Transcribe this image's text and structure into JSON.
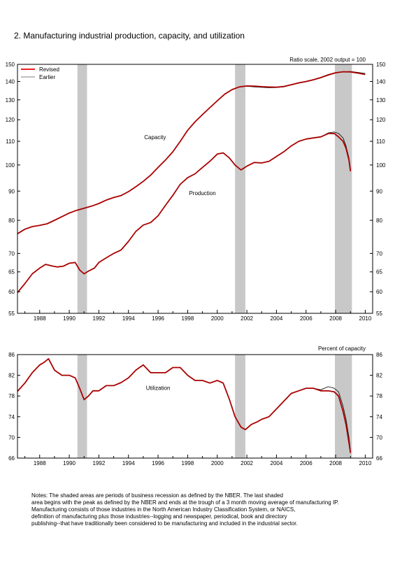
{
  "figure": {
    "title": "2. Manufacturing industrial production, capacity, and utilization",
    "notes": [
      " Notes: The shaded areas are periods of business recession as defined by the NBER.  The last shaded",
      "area begins with the peak as defined by the NBER and ends at the trough of a 3 month moving average of manufacturing IP.",
      "  Manufacturing consists of those industries in the North American Industry Classification System, or NAICS,",
      "definition of manufacturing plus those industries--logging and newspaper, periodical, book and directory",
      "publishing--that have traditionally been considered to be manufacturing and included in the industrial sector."
    ]
  },
  "colors": {
    "revised": "#aa0000",
    "earlier": "#000000",
    "recession": "#c8c8c8",
    "legend_revised": "#ee0000",
    "legend_earlier": "#999999"
  },
  "chart_data": [
    {
      "type": "line",
      "scale": "log",
      "annotation": "Ratio scale, 2002 output = 100",
      "xlim": [
        1986.5,
        2010.5
      ],
      "ylim": [
        55,
        150
      ],
      "x_ticks": [
        1988,
        1990,
        1992,
        1994,
        1996,
        1998,
        2000,
        2002,
        2004,
        2006,
        2008,
        2010
      ],
      "y_ticks": [
        55,
        60,
        65,
        70,
        80,
        90,
        100,
        110,
        120,
        130,
        140,
        150
      ],
      "recessions": [
        [
          1990.55,
          1991.2
        ],
        [
          2001.2,
          2001.9
        ],
        [
          2007.95,
          2009.1
        ]
      ],
      "legend": [
        "Revised",
        "Earlier"
      ],
      "legend_position": "top-left",
      "series": [
        {
          "label": "Capacity",
          "x": [
            1986.5,
            1987.0,
            1987.5,
            1988.0,
            1988.5,
            1989.0,
            1989.5,
            1990.0,
            1990.5,
            1991.0,
            1991.5,
            1992.0,
            1992.5,
            1993.0,
            1993.5,
            1994.0,
            1994.5,
            1995.0,
            1995.5,
            1996.0,
            1996.5,
            1997.0,
            1997.5,
            1998.0,
            1998.5,
            1999.0,
            1999.5,
            2000.0,
            2000.5,
            2001.0,
            2001.5,
            2002.0,
            2002.5,
            2003.0,
            2003.5,
            2004.0,
            2004.5,
            2005.0,
            2005.5,
            2006.0,
            2006.5,
            2007.0,
            2007.5,
            2008.0,
            2008.5,
            2009.0,
            2009.5,
            2010.0
          ],
          "revised": [
            75.8,
            77.2,
            78.0,
            78.4,
            78.9,
            80.0,
            81.2,
            82.4,
            83.3,
            84.0,
            84.7,
            85.6,
            86.8,
            87.7,
            88.4,
            89.8,
            91.6,
            93.6,
            96.0,
            99.0,
            102.0,
            105.5,
            110.0,
            115.0,
            119.0,
            122.5,
            126.0,
            129.5,
            133.0,
            135.5,
            137.0,
            137.5,
            137.4,
            137.1,
            136.9,
            136.8,
            137.2,
            138.2,
            139.2,
            140.0,
            141.0,
            142.2,
            143.8,
            145.0,
            145.6,
            145.5,
            144.8,
            144.0
          ],
          "earlier": [
            75.8,
            77.2,
            78.0,
            78.4,
            78.9,
            80.0,
            81.2,
            82.4,
            83.3,
            84.0,
            84.7,
            85.6,
            86.8,
            87.7,
            88.4,
            89.8,
            91.6,
            93.6,
            96.0,
            99.0,
            102.0,
            105.5,
            110.0,
            115.0,
            119.0,
            122.5,
            126.0,
            129.5,
            133.0,
            135.5,
            137.0,
            137.3,
            137.0,
            136.7,
            136.5,
            136.6,
            137.0,
            138.0,
            139.0,
            139.8,
            140.8,
            142.0,
            143.5,
            144.8,
            145.6,
            145.8,
            145.2,
            144.6
          ]
        },
        {
          "label": "Production",
          "x": [
            1986.5,
            1987.0,
            1987.5,
            1988.0,
            1988.4,
            1988.8,
            1989.2,
            1989.6,
            1990.0,
            1990.4,
            1990.7,
            1991.0,
            1991.3,
            1991.7,
            1992.0,
            1992.5,
            1993.0,
            1993.5,
            1994.0,
            1994.5,
            1995.0,
            1995.5,
            1996.0,
            1996.5,
            1997.0,
            1997.5,
            1998.0,
            1998.5,
            1999.0,
            1999.5,
            2000.0,
            2000.4,
            2000.8,
            2001.2,
            2001.6,
            2002.0,
            2002.5,
            2003.0,
            2003.5,
            2004.0,
            2004.5,
            2005.0,
            2005.5,
            2006.0,
            2006.5,
            2007.0,
            2007.5,
            2007.9,
            2008.2,
            2008.5,
            2008.7,
            2008.9,
            2009.0
          ],
          "revised": [
            59.8,
            62.0,
            64.5,
            66.0,
            67.0,
            66.6,
            66.3,
            66.5,
            67.3,
            67.5,
            65.5,
            64.5,
            65.2,
            66.0,
            67.5,
            68.8,
            70.0,
            71.0,
            73.5,
            76.5,
            78.5,
            79.3,
            81.5,
            85.0,
            88.5,
            92.5,
            95.0,
            96.5,
            99.0,
            101.5,
            104.5,
            105.0,
            103.0,
            100.0,
            98.0,
            99.5,
            101.0,
            100.8,
            101.5,
            103.5,
            105.5,
            108.0,
            110.0,
            111.0,
            111.5,
            112.0,
            113.5,
            113.5,
            112.0,
            110.0,
            107.0,
            102.0,
            97.5
          ],
          "earlier": [
            59.8,
            62.0,
            64.5,
            66.0,
            67.0,
            66.6,
            66.3,
            66.5,
            67.3,
            67.5,
            65.5,
            64.5,
            65.2,
            66.0,
            67.5,
            68.8,
            70.0,
            71.0,
            73.5,
            76.5,
            78.5,
            79.3,
            81.5,
            85.0,
            88.5,
            92.5,
            95.0,
            96.5,
            99.0,
            101.5,
            104.5,
            105.0,
            103.0,
            100.0,
            98.0,
            99.5,
            101.0,
            100.8,
            101.5,
            103.5,
            105.5,
            108.0,
            110.0,
            111.0,
            111.5,
            112.0,
            113.8,
            114.2,
            113.5,
            111.5,
            108.0,
            103.0,
            98.5
          ]
        }
      ]
    },
    {
      "type": "line",
      "annotation": "Percent of capacity",
      "xlim": [
        1986.5,
        2010.5
      ],
      "ylim": [
        66,
        86
      ],
      "x_ticks": [
        1988,
        1990,
        1992,
        1994,
        1996,
        1998,
        2000,
        2002,
        2004,
        2006,
        2008,
        2010
      ],
      "y_ticks": [
        66,
        70,
        74,
        78,
        82,
        86
      ],
      "recessions": [
        [
          1990.55,
          1991.2
        ],
        [
          2001.2,
          2001.9
        ],
        [
          2007.95,
          2009.1
        ]
      ],
      "series": [
        {
          "label": "Utilization",
          "x": [
            1986.5,
            1987.0,
            1987.5,
            1988.0,
            1988.3,
            1988.6,
            1989.0,
            1989.5,
            1990.0,
            1990.4,
            1990.7,
            1991.0,
            1991.3,
            1991.6,
            1992.0,
            1992.5,
            1993.0,
            1993.5,
            1994.0,
            1994.5,
            1995.0,
            1995.5,
            1996.0,
            1996.5,
            1997.0,
            1997.5,
            1998.0,
            1998.5,
            1999.0,
            1999.5,
            2000.0,
            2000.4,
            2000.8,
            2001.2,
            2001.6,
            2001.9,
            2002.3,
            2002.7,
            2003.0,
            2003.5,
            2004.0,
            2004.5,
            2005.0,
            2005.5,
            2006.0,
            2006.5,
            2007.0,
            2007.5,
            2007.9,
            2008.2,
            2008.5,
            2008.7,
            2008.9,
            2009.0
          ],
          "revised": [
            78.9,
            80.5,
            82.5,
            84.0,
            84.5,
            85.2,
            83.0,
            82.0,
            82.0,
            81.5,
            79.5,
            77.3,
            78.0,
            79.0,
            79.0,
            80.0,
            80.0,
            80.6,
            81.5,
            83.0,
            84.0,
            82.5,
            82.5,
            82.5,
            83.5,
            83.5,
            82.0,
            81.0,
            81.0,
            80.5,
            81.0,
            80.5,
            77.5,
            74.0,
            72.0,
            71.5,
            72.5,
            73.0,
            73.5,
            74.0,
            75.5,
            77.0,
            78.5,
            79.0,
            79.5,
            79.5,
            79.0,
            79.0,
            78.8,
            78.0,
            75.0,
            72.5,
            69.0,
            67.0
          ],
          "earlier": [
            78.9,
            80.5,
            82.5,
            84.0,
            84.5,
            85.2,
            83.0,
            82.0,
            82.0,
            81.5,
            79.5,
            77.3,
            78.0,
            79.0,
            79.0,
            80.0,
            80.0,
            80.6,
            81.5,
            83.0,
            84.0,
            82.5,
            82.5,
            82.5,
            83.5,
            83.5,
            82.0,
            81.0,
            81.0,
            80.5,
            81.0,
            80.5,
            77.5,
            74.0,
            72.0,
            71.5,
            72.5,
            73.0,
            73.5,
            74.0,
            75.5,
            77.0,
            78.5,
            79.0,
            79.5,
            79.5,
            79.2,
            79.8,
            79.5,
            78.8,
            76.0,
            73.5,
            70.0,
            67.5
          ]
        }
      ]
    }
  ]
}
